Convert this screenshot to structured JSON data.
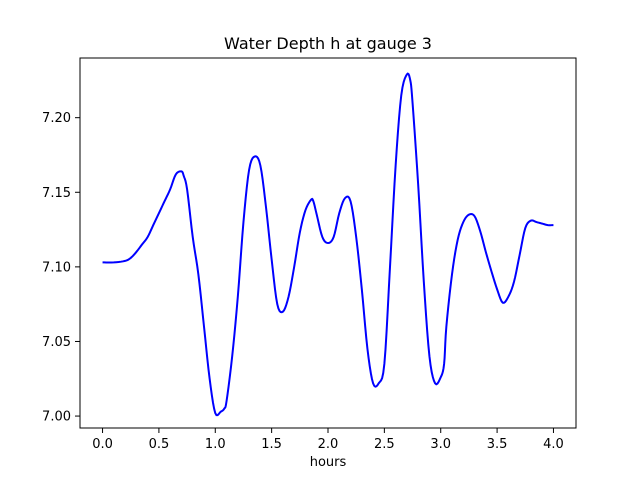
{
  "chart_data": {
    "type": "line",
    "title": "Water Depth h at gauge 3",
    "xlabel": "hours",
    "ylabel": "",
    "xlim": [
      -0.2,
      4.2
    ],
    "ylim": [
      6.992,
      7.24
    ],
    "xticks": [
      0.0,
      0.5,
      1.0,
      1.5,
      2.0,
      2.5,
      3.0,
      3.5,
      4.0
    ],
    "xtick_labels": [
      "0.0",
      "0.5",
      "1.0",
      "1.5",
      "2.0",
      "2.5",
      "3.0",
      "3.5",
      "4.0"
    ],
    "yticks": [
      7.0,
      7.05,
      7.1,
      7.15,
      7.2
    ],
    "ytick_labels": [
      "7.00",
      "7.05",
      "7.10",
      "7.15",
      "7.20"
    ],
    "grid": false,
    "line_color": "#0000ff",
    "series": [
      {
        "x": [
          0.0,
          0.1,
          0.2,
          0.25,
          0.3,
          0.35,
          0.4,
          0.45,
          0.5,
          0.55,
          0.6,
          0.65,
          0.7,
          0.72,
          0.75,
          0.8,
          0.85,
          0.9,
          0.95,
          1.0,
          1.05,
          1.08,
          1.1,
          1.15,
          1.2,
          1.25,
          1.3,
          1.35,
          1.4,
          1.45,
          1.5,
          1.55,
          1.6,
          1.65,
          1.7,
          1.75,
          1.8,
          1.85,
          1.87,
          1.9,
          1.95,
          2.0,
          2.05,
          2.1,
          2.15,
          2.2,
          2.25,
          2.3,
          2.35,
          2.4,
          2.45,
          2.5,
          2.55,
          2.6,
          2.65,
          2.7,
          2.73,
          2.75,
          2.8,
          2.85,
          2.9,
          2.95,
          3.0,
          3.03,
          3.05,
          3.1,
          3.15,
          3.2,
          3.25,
          3.3,
          3.35,
          3.4,
          3.45,
          3.5,
          3.55,
          3.6,
          3.65,
          3.7,
          3.75,
          3.8,
          3.85,
          3.9,
          3.95,
          4.0
        ],
        "y": [
          7.103,
          7.103,
          7.104,
          7.106,
          7.11,
          7.115,
          7.12,
          7.128,
          7.136,
          7.144,
          7.152,
          7.162,
          7.164,
          7.161,
          7.152,
          7.12,
          7.095,
          7.06,
          7.025,
          7.002,
          7.003,
          7.005,
          7.01,
          7.04,
          7.08,
          7.13,
          7.165,
          7.174,
          7.168,
          7.14,
          7.105,
          7.075,
          7.07,
          7.08,
          7.1,
          7.123,
          7.138,
          7.145,
          7.144,
          7.135,
          7.12,
          7.116,
          7.12,
          7.136,
          7.146,
          7.144,
          7.12,
          7.085,
          7.045,
          7.022,
          7.022,
          7.035,
          7.1,
          7.168,
          7.215,
          7.229,
          7.225,
          7.21,
          7.155,
          7.09,
          7.04,
          7.022,
          7.026,
          7.035,
          7.06,
          7.095,
          7.118,
          7.13,
          7.135,
          7.134,
          7.124,
          7.11,
          7.097,
          7.085,
          7.076,
          7.08,
          7.09,
          7.108,
          7.126,
          7.131,
          7.13,
          7.129,
          7.128,
          7.128
        ]
      }
    ]
  }
}
